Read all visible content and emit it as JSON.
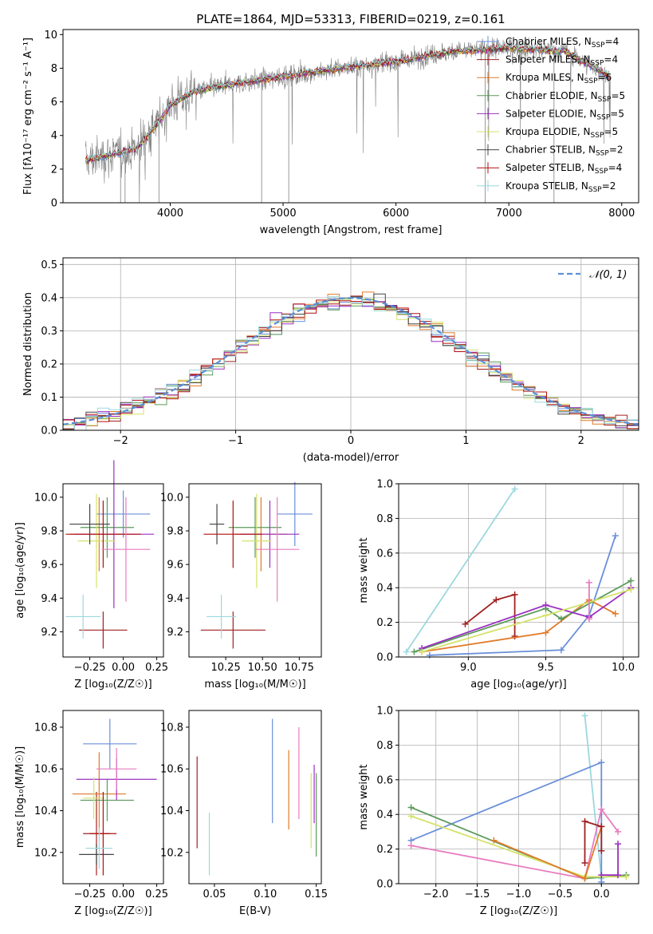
{
  "title": "PLATE=1864, MJD=53313, FIBERID=0219, z=0.161",
  "colors": {
    "chabrier_miles": "#6a8fd8",
    "salpeter_miles": "#a02020",
    "kroupa_miles": "#e07b2a",
    "chabrier_elodie": "#5a9a5a",
    "salpeter_elodie": "#9b2fc0",
    "kroupa_elodie": "#d4e26a",
    "chabrier_stelib": "#444444",
    "salpeter_stelib": "#b01010",
    "kroupa_stelib": "#9cd8de",
    "pink": "#e87bbf",
    "gray_data": "#808080"
  },
  "chart_data": [
    {
      "id": "spectrum",
      "type": "line",
      "xlabel": "wavelength [Angstrom, rest frame]",
      "ylabel": "Flux [fλ10⁻¹⁷ erg cm⁻² s⁻¹ A⁻¹]",
      "xlim": [
        3050,
        8150
      ],
      "ylim": [
        0,
        10.3
      ],
      "xticks": [
        4000,
        5000,
        6000,
        7000,
        8000
      ],
      "yticks": [
        0,
        2,
        4,
        6,
        8,
        10
      ],
      "grid": false,
      "legend": "upper-right",
      "legend_entries": [
        {
          "label": "Chabrier MILES, N",
          "sub": "SSP",
          "suffix": "=4",
          "color": "#6a8fd8"
        },
        {
          "label": "Salpeter MILES, N",
          "sub": "SSP",
          "suffix": "=4",
          "color": "#a02020"
        },
        {
          "label": "Kroupa MILES, N",
          "sub": "SSP",
          "suffix": "=6",
          "color": "#e07b2a"
        },
        {
          "label": "Chabrier ELODIE, N",
          "sub": "SSP",
          "suffix": "=5",
          "color": "#5a9a5a"
        },
        {
          "label": "Salpeter ELODIE, N",
          "sub": "SSP",
          "suffix": "=5",
          "color": "#9b2fc0"
        },
        {
          "label": "Kroupa ELODIE, N",
          "sub": "SSP",
          "suffix": "=5",
          "color": "#d4e26a"
        },
        {
          "label": "Chabrier STELIB, N",
          "sub": "SSP",
          "suffix": "=2",
          "color": "#444444"
        },
        {
          "label": "Salpeter STELIB, N",
          "sub": "SSP",
          "suffix": "=4",
          "color": "#b01010"
        },
        {
          "label": "Kroupa STELIB, N",
          "sub": "SSP",
          "suffix": "=2",
          "color": "#9cd8de"
        }
      ],
      "continuum": {
        "x": [
          3250,
          3500,
          3700,
          3800,
          3900,
          4000,
          4200,
          4500,
          4800,
          5000,
          5500,
          6000,
          6500,
          7000,
          7500,
          7900
        ],
        "y": [
          2.5,
          2.9,
          3.2,
          4.0,
          4.8,
          5.8,
          6.6,
          7.0,
          7.3,
          7.5,
          8.0,
          8.4,
          9.0,
          9.2,
          9.0,
          7.5
        ]
      }
    },
    {
      "id": "residuals",
      "type": "bar",
      "xlabel": "(data-model)/error",
      "ylabel": "Normed distribution",
      "xlim": [
        -2.5,
        2.5
      ],
      "ylim": [
        0,
        0.52
      ],
      "xticks": [
        -2,
        -1,
        0,
        1,
        2
      ],
      "yticks": [
        0.0,
        0.1,
        0.2,
        0.3,
        0.4,
        0.5
      ],
      "grid": true,
      "legend": "upper-right",
      "legend_label": "𝒩(0, 1)",
      "bin_width": 0.1
    },
    {
      "id": "age_vs_Z",
      "type": "scatter",
      "xlabel": "Z [log₁₀(Z/Z☉)]",
      "ylabel": "age  [log₁₀(age/yr)]",
      "xlim": [
        -0.45,
        0.3
      ],
      "ylim": [
        9.05,
        10.08
      ],
      "xticks": [
        -0.25,
        0.0,
        0.25
      ],
      "yticks": [
        9.2,
        9.4,
        9.6,
        9.8,
        10.0
      ],
      "crosses": [
        {
          "color": "#6a8fd8",
          "x": 0.0,
          "y": 9.9,
          "xerr": 0.2,
          "yerr": 0.14
        },
        {
          "color": "#a02020",
          "x": -0.15,
          "y": 9.21,
          "xerr": 0.18,
          "yerr": 0.11
        },
        {
          "color": "#e07b2a",
          "x": -0.18,
          "y": 9.78,
          "xerr": 0.22,
          "yerr": 0.22
        },
        {
          "color": "#5a9a5a",
          "x": -0.12,
          "y": 9.82,
          "xerr": 0.2,
          "yerr": 0.18
        },
        {
          "color": "#9b2fc0",
          "x": -0.07,
          "y": 9.78,
          "xerr": 0.3,
          "yerr": 0.44
        },
        {
          "color": "#d4e26a",
          "x": -0.2,
          "y": 9.74,
          "xerr": 0.14,
          "yerr": 0.28
        },
        {
          "color": "#444444",
          "x": -0.25,
          "y": 9.84,
          "xerr": 0.15,
          "yerr": 0.12
        },
        {
          "color": "#b01010",
          "x": -0.15,
          "y": 9.78,
          "xerr": 0.28,
          "yerr": 0.2
        },
        {
          "color": "#9cd8de",
          "x": -0.3,
          "y": 9.29,
          "xerr": 0.13,
          "yerr": 0.13
        },
        {
          "color": "#e87bbf",
          "x": 0.02,
          "y": 9.69,
          "xerr": 0.18,
          "yerr": 0.31
        }
      ]
    },
    {
      "id": "age_vs_mass",
      "type": "scatter",
      "xlabel": "mass [log₁₀(M/M☉)]",
      "ylabel": "",
      "xlim": [
        10.0,
        10.9
      ],
      "ylim": [
        9.05,
        10.08
      ],
      "xticks": [
        10.25,
        10.5,
        10.75
      ],
      "yticks": [
        9.2,
        9.4,
        9.6,
        9.8,
        10.0
      ],
      "crosses": [
        {
          "color": "#6a8fd8",
          "x": 10.72,
          "y": 9.9,
          "xerr": 0.12,
          "yerr": 0.19
        },
        {
          "color": "#a02020",
          "x": 10.3,
          "y": 9.21,
          "xerr": 0.22,
          "yerr": 0.11
        },
        {
          "color": "#e07b2a",
          "x": 10.49,
          "y": 9.78,
          "xerr": 0.18,
          "yerr": 0.22
        },
        {
          "color": "#5a9a5a",
          "x": 10.45,
          "y": 9.82,
          "xerr": 0.18,
          "yerr": 0.18
        },
        {
          "color": "#9b2fc0",
          "x": 10.55,
          "y": 9.78,
          "xerr": 0.2,
          "yerr": 0.2
        },
        {
          "color": "#d4e26a",
          "x": 10.46,
          "y": 9.74,
          "xerr": 0.1,
          "yerr": 0.28
        },
        {
          "color": "#444444",
          "x": 10.19,
          "y": 9.84,
          "xerr": 0.05,
          "yerr": 0.12
        },
        {
          "color": "#b01010",
          "x": 10.3,
          "y": 9.78,
          "xerr": 0.2,
          "yerr": 0.2
        },
        {
          "color": "#9cd8de",
          "x": 10.22,
          "y": 9.29,
          "xerr": 0.1,
          "yerr": 0.13
        },
        {
          "color": "#e87bbf",
          "x": 10.6,
          "y": 9.69,
          "xerr": 0.15,
          "yerr": 0.31
        }
      ]
    },
    {
      "id": "weight_vs_age",
      "type": "line",
      "xlabel": "age  [log₁₀(age/yr)]",
      "ylabel": "mass weight",
      "xlim": [
        8.55,
        10.1
      ],
      "ylim": [
        0,
        1.0
      ],
      "xticks": [
        9.0,
        9.5,
        10.0
      ],
      "yticks": [
        0.0,
        0.2,
        0.4,
        0.6,
        0.8,
        1.0
      ],
      "grid": true,
      "series": [
        {
          "color": "#9cd8de",
          "x": [
            8.6,
            9.3
          ],
          "y": [
            0.03,
            0.97
          ]
        },
        {
          "color": "#6a8fd8",
          "x": [
            8.75,
            9.6,
            9.78,
            9.95
          ],
          "y": [
            0.01,
            0.04,
            0.24,
            0.7
          ]
        },
        {
          "color": "#a02020",
          "x": [
            8.98,
            9.18,
            9.3,
            9.3
          ],
          "y": [
            0.19,
            0.33,
            0.36,
            0.12
          ]
        },
        {
          "color": "#e07b2a",
          "x": [
            8.7,
            9.5,
            9.78,
            9.95
          ],
          "y": [
            0.03,
            0.14,
            0.33,
            0.25
          ]
        },
        {
          "color": "#5a9a5a",
          "x": [
            8.65,
            9.5,
            9.6,
            10.05
          ],
          "y": [
            0.03,
            0.28,
            0.22,
            0.44
          ]
        },
        {
          "color": "#9b2fc0",
          "x": [
            8.7,
            9.5,
            9.78,
            10.05
          ],
          "y": [
            0.05,
            0.3,
            0.23,
            0.4
          ]
        },
        {
          "color": "#d4e26a",
          "x": [
            8.7,
            9.5,
            10.05
          ],
          "y": [
            0.03,
            0.24,
            0.39
          ]
        },
        {
          "color": "#e87bbf",
          "x": [
            9.78,
            9.78
          ],
          "y": [
            0.22,
            0.43
          ]
        }
      ]
    },
    {
      "id": "mass_vs_Z",
      "type": "scatter",
      "xlabel": "Z [log₁₀(Z/Z☉)]",
      "ylabel": "mass [log₁₀(M/M☉)]",
      "xlim": [
        -0.45,
        0.3
      ],
      "ylim": [
        10.05,
        10.88
      ],
      "xticks": [
        -0.25,
        0.0,
        0.25
      ],
      "yticks": [
        10.2,
        10.4,
        10.6,
        10.8
      ],
      "crosses": [
        {
          "color": "#6a8fd8",
          "x": -0.1,
          "y": 10.72,
          "xerr": 0.2,
          "yerr": 0.12
        },
        {
          "color": "#a02020",
          "x": -0.2,
          "y": 10.29,
          "xerr": 0.1,
          "yerr": 0.2
        },
        {
          "color": "#e07b2a",
          "x": -0.18,
          "y": 10.48,
          "xerr": 0.2,
          "yerr": 0.2
        },
        {
          "color": "#5a9a5a",
          "x": -0.12,
          "y": 10.45,
          "xerr": 0.2,
          "yerr": 0.1
        },
        {
          "color": "#9b2fc0",
          "x": -0.05,
          "y": 10.55,
          "xerr": 0.3,
          "yerr": 0.1
        },
        {
          "color": "#d4e26a",
          "x": -0.22,
          "y": 10.46,
          "xerr": 0.08,
          "yerr": 0.1
        },
        {
          "color": "#444444",
          "x": -0.2,
          "y": 10.19,
          "xerr": 0.13,
          "yerr": 0.05
        },
        {
          "color": "#b01010",
          "x": -0.15,
          "y": 10.29,
          "xerr": 0.1,
          "yerr": 0.2
        },
        {
          "color": "#9cd8de",
          "x": -0.18,
          "y": 10.22,
          "xerr": 0.1,
          "yerr": 0.1
        },
        {
          "color": "#e87bbf",
          "x": -0.05,
          "y": 10.6,
          "xerr": 0.15,
          "yerr": 0.1
        }
      ]
    },
    {
      "id": "mass_vs_ebv",
      "type": "scatter",
      "xlabel": "E(B-V)",
      "ylabel": "",
      "xlim": [
        0.025,
        0.155
      ],
      "ylim": [
        10.05,
        10.88
      ],
      "xticks": [
        0.05,
        0.1,
        0.15
      ],
      "yticks": [
        10.2,
        10.4,
        10.6,
        10.8
      ],
      "crosses": [
        {
          "color": "#a02020",
          "x": 0.033,
          "y": 10.44,
          "xerr": 0,
          "yerr": 0.22
        },
        {
          "color": "#9cd8de",
          "x": 0.045,
          "y": 10.24,
          "xerr": 0,
          "yerr": 0.15
        },
        {
          "color": "#6a8fd8",
          "x": 0.107,
          "y": 10.59,
          "xerr": 0,
          "yerr": 0.25
        },
        {
          "color": "#e07b2a",
          "x": 0.123,
          "y": 10.5,
          "xerr": 0,
          "yerr": 0.19
        },
        {
          "color": "#e87bbf",
          "x": 0.133,
          "y": 10.58,
          "xerr": 0,
          "yerr": 0.22
        },
        {
          "color": "#d4e26a",
          "x": 0.145,
          "y": 10.4,
          "xerr": 0,
          "yerr": 0.18
        },
        {
          "color": "#9b2fc0",
          "x": 0.148,
          "y": 10.48,
          "xerr": 0,
          "yerr": 0.14
        },
        {
          "color": "#5a9a5a",
          "x": 0.15,
          "y": 10.38,
          "xerr": 0,
          "yerr": 0.2
        }
      ]
    },
    {
      "id": "weight_vs_Z",
      "type": "line",
      "xlabel": "Z [log₁₀(Z/Z☉)]",
      "ylabel": "mass weight",
      "xlim": [
        -2.45,
        0.45
      ],
      "ylim": [
        0,
        1.0
      ],
      "xticks": [
        -2.0,
        -1.5,
        -1.0,
        -0.5,
        0.0
      ],
      "yticks": [
        0.0,
        0.2,
        0.4,
        0.6,
        0.8,
        1.0
      ],
      "grid": true,
      "series": [
        {
          "color": "#9cd8de",
          "x": [
            -0.2,
            0.0
          ],
          "y": [
            0.97,
            0.03
          ]
        },
        {
          "color": "#6a8fd8",
          "x": [
            -2.3,
            0.0,
            0.0
          ],
          "y": [
            0.25,
            0.7,
            0.01
          ]
        },
        {
          "color": "#e87bbf",
          "x": [
            -2.3,
            -0.2,
            0.0,
            0.2
          ],
          "y": [
            0.22,
            0.03,
            0.43,
            0.3
          ]
        },
        {
          "color": "#5a9a5a",
          "x": [
            -2.3,
            -0.2,
            0.3
          ],
          "y": [
            0.44,
            0.03,
            0.05
          ]
        },
        {
          "color": "#d4e26a",
          "x": [
            -2.3,
            -0.2,
            0.3
          ],
          "y": [
            0.39,
            0.04,
            0.04
          ]
        },
        {
          "color": "#e07b2a",
          "x": [
            -1.3,
            -0.2,
            0.0
          ],
          "y": [
            0.25,
            0.03,
            0.33
          ]
        },
        {
          "color": "#a02020",
          "x": [
            -0.2,
            -0.2,
            0.0,
            0.0
          ],
          "y": [
            0.12,
            0.36,
            0.33,
            0.19
          ]
        },
        {
          "color": "#9b2fc0",
          "x": [
            0.0,
            0.2,
            0.2
          ],
          "y": [
            0.05,
            0.05,
            0.23
          ]
        }
      ]
    }
  ]
}
